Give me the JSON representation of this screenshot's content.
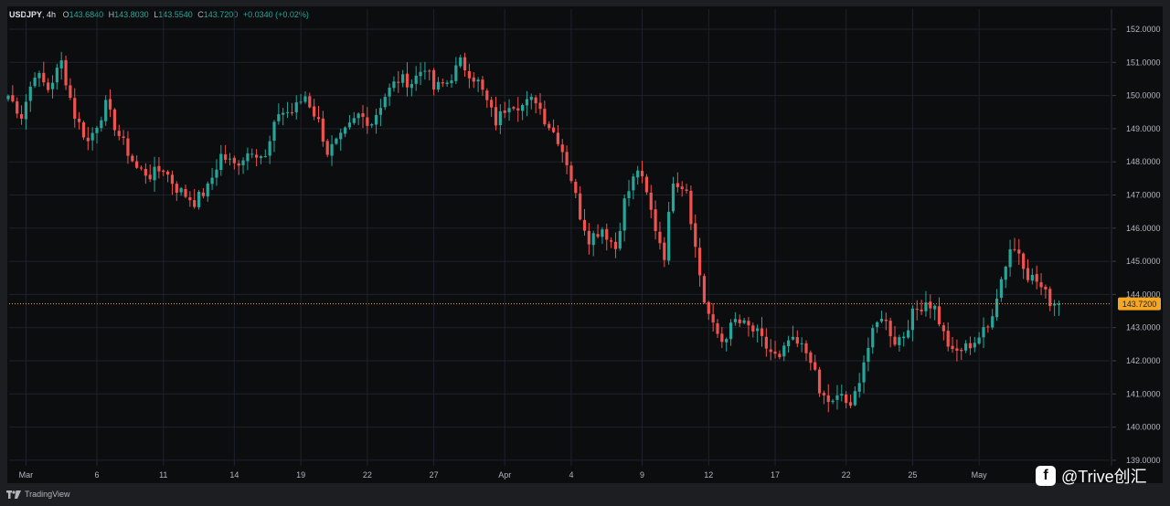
{
  "header": {
    "symbol": "USDJPY",
    "timeframe": "4h",
    "open": "143.6840",
    "high": "143.8030",
    "low": "143.5540",
    "close": "143.7200",
    "change": "+0.0340 (+0.02%)"
  },
  "branding": {
    "platform": "TradingView",
    "watermark": "@Trive创汇"
  },
  "chart_data": {
    "type": "candlestick",
    "symbol": "USDJPY",
    "interval": "4h",
    "y_ticks": [
      "139.0000",
      "140.0000",
      "141.0000",
      "142.0000",
      "143.0000",
      "144.0000",
      "145.0000",
      "146.0000",
      "147.0000",
      "148.0000",
      "149.0000",
      "150.0000",
      "151.0000",
      "152.0000"
    ],
    "x_ticks": [
      "Mar",
      "6",
      "11",
      "14",
      "19",
      "22",
      "27",
      "Apr",
      "4",
      "9",
      "12",
      "17",
      "22",
      "25",
      "May"
    ],
    "ylim": [
      138.7,
      152.4
    ],
    "last_price": 143.72,
    "last_price_label": "143.7200",
    "colors": {
      "up": "#26a69a",
      "down": "#ef5350",
      "price_line": "#f5a623",
      "grid": "#1e222d",
      "axis_text": "#b2b5be"
    },
    "close_path": [
      [
        0,
        150.0
      ],
      [
        3,
        149.4
      ],
      [
        6,
        150.7
      ],
      [
        9,
        150.2
      ],
      [
        12,
        151.0
      ],
      [
        15,
        149.4
      ],
      [
        18,
        148.6
      ],
      [
        22,
        149.7
      ],
      [
        25,
        148.8
      ],
      [
        29,
        147.8
      ],
      [
        32,
        147.6
      ],
      [
        35,
        147.8
      ],
      [
        38,
        147.2
      ],
      [
        42,
        146.8
      ],
      [
        45,
        147.2
      ],
      [
        48,
        148.2
      ],
      [
        51,
        147.9
      ],
      [
        55,
        148.4
      ],
      [
        58,
        148.1
      ],
      [
        61,
        149.5
      ],
      [
        64,
        149.5
      ],
      [
        67,
        150.0
      ],
      [
        70,
        149.2
      ],
      [
        72,
        148.3
      ],
      [
        75,
        148.7
      ],
      [
        79,
        149.4
      ],
      [
        82,
        149.2
      ],
      [
        85,
        150.0
      ],
      [
        88,
        150.5
      ],
      [
        91,
        150.4
      ],
      [
        94,
        150.9
      ],
      [
        96,
        150.2
      ],
      [
        99,
        150.4
      ],
      [
        102,
        151.0
      ],
      [
        106,
        150.4
      ],
      [
        108,
        149.8
      ],
      [
        110,
        149.2
      ],
      [
        113,
        149.8
      ],
      [
        116,
        149.7
      ],
      [
        119,
        149.9
      ],
      [
        121,
        149.3
      ],
      [
        124,
        148.7
      ],
      [
        126,
        148.0
      ],
      [
        127,
        147.5
      ],
      [
        129,
        146.4
      ],
      [
        131,
        145.7
      ],
      [
        134,
        146.0
      ],
      [
        137,
        145.4
      ],
      [
        139,
        146.8
      ],
      [
        142,
        147.8
      ],
      [
        144,
        147.0
      ],
      [
        146,
        146.0
      ],
      [
        148,
        145.2
      ],
      [
        150,
        147.5
      ],
      [
        153,
        147.2
      ],
      [
        155,
        145.4
      ],
      [
        157,
        143.8
      ],
      [
        159,
        143.0
      ],
      [
        161,
        142.6
      ],
      [
        164,
        143.2
      ],
      [
        167,
        143.0
      ],
      [
        169,
        142.8
      ],
      [
        171,
        142.4
      ],
      [
        174,
        142.0
      ],
      [
        176,
        142.6
      ],
      [
        179,
        142.4
      ],
      [
        181,
        142.1
      ],
      [
        183,
        141.0
      ],
      [
        186,
        140.7
      ],
      [
        188,
        141.0
      ],
      [
        190,
        140.5
      ],
      [
        193,
        142.0
      ],
      [
        195,
        142.8
      ],
      [
        197,
        143.4
      ],
      [
        200,
        142.6
      ],
      [
        202,
        142.8
      ],
      [
        204,
        143.4
      ],
      [
        207,
        143.8
      ],
      [
        209,
        143.6
      ],
      [
        211,
        142.8
      ],
      [
        213,
        142.2
      ],
      [
        216,
        142.4
      ],
      [
        218,
        142.6
      ],
      [
        221,
        143.0
      ],
      [
        223,
        144.0
      ],
      [
        226,
        145.4
      ],
      [
        228,
        145.3
      ],
      [
        230,
        144.6
      ],
      [
        232,
        144.4
      ],
      [
        235,
        143.8
      ],
      [
        237,
        143.72
      ]
    ]
  }
}
